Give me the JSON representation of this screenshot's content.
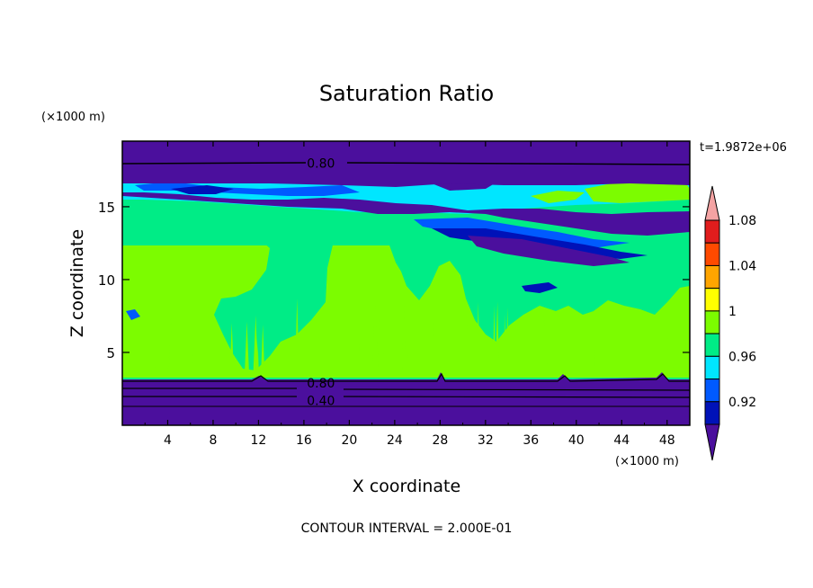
{
  "chart_data": {
    "type": "heatmap",
    "title": "Saturation Ratio",
    "time_label": "t=1.9872e+06",
    "xlabel": "X coordinate",
    "ylabel": "Z coordinate",
    "x_unit": "(×1000 m)",
    "y_unit": "(×1000 m)",
    "xlim": [
      0,
      50
    ],
    "ylim": [
      0,
      19.5
    ],
    "x_ticks": [
      4,
      8,
      12,
      16,
      20,
      24,
      28,
      32,
      36,
      40,
      44,
      48
    ],
    "y_ticks": [
      5,
      10,
      15
    ],
    "contour_labels": [
      {
        "text": "0.80",
        "x": 17.5,
        "z": 18.0
      },
      {
        "text": "0.80",
        "x": 17.5,
        "z": 2.9
      },
      {
        "text": "0.40",
        "x": 17.5,
        "z": 1.7
      }
    ],
    "contour_interval_text": "CONTOUR INTERVAL = 2.000E-01",
    "colorbar": {
      "labels": [
        "0.92",
        "0.96",
        "1",
        "1.04",
        "1.08"
      ],
      "colors": [
        "#4b0f9d",
        "#0012b8",
        "#005aff",
        "#00e6ff",
        "#00ec86",
        "#7cfc00",
        "#ffff00",
        "#ffa500",
        "#ff4a00",
        "#e11d1d",
        "#f4a3a3"
      ]
    },
    "bands": [
      {
        "z0": 17.5,
        "z1": 19.5,
        "level": "purple"
      },
      {
        "z0": 14.0,
        "z1": 17.5,
        "level": "mixed"
      },
      {
        "z0": 3.2,
        "z1": 14.0,
        "level": "green"
      },
      {
        "z0": 0,
        "z1": 3.2,
        "level": "purple"
      }
    ]
  }
}
